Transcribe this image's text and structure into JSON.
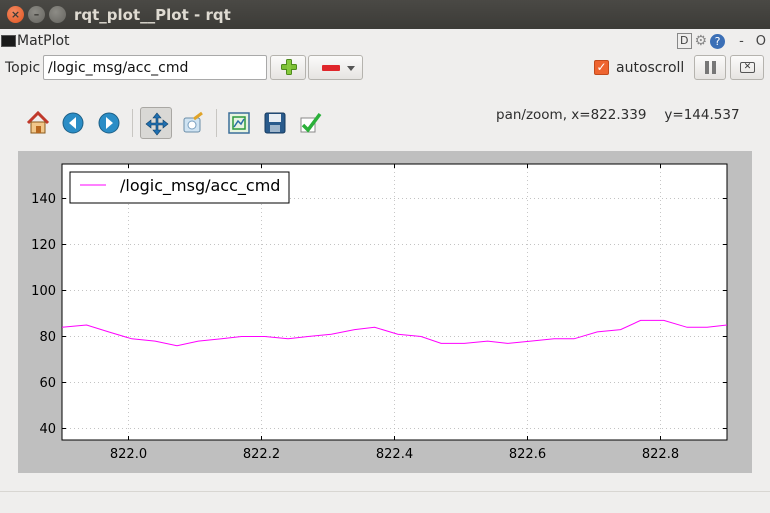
{
  "window": {
    "title": "rqt_plot__Plot - rqt"
  },
  "plugin": {
    "title": "MatPlot",
    "help_letter": "D",
    "help_q": "?",
    "minimize": "-",
    "close": "O"
  },
  "topic": {
    "label": "Topic",
    "value": "/logic_msg/acc_cmd"
  },
  "autoscroll": {
    "label": "autoscroll",
    "checked": true
  },
  "toolbar": {
    "coords_x": "pan/zoom, x=822.339",
    "coords_y": "y=144.537",
    "icons": [
      "home-icon",
      "back-icon",
      "forward-icon",
      "pan-icon",
      "zoom-icon",
      "configure-subplots-icon",
      "save-icon",
      "edit-curves-icon"
    ]
  },
  "colors": {
    "series": "#ff00ff",
    "accent": "#ee6430"
  },
  "chart_data": {
    "type": "line",
    "title": "",
    "xlabel": "",
    "ylabel": "",
    "xlim": [
      821.9,
      822.9
    ],
    "ylim": [
      35,
      155
    ],
    "grid": true,
    "legend_position": "top-left",
    "xticks": [
      822.0,
      822.2,
      822.4,
      822.6,
      822.8
    ],
    "xtick_labels": [
      "822.0",
      "822.2",
      "822.4",
      "822.6",
      "822.8"
    ],
    "yticks": [
      40,
      60,
      80,
      100,
      120,
      140
    ],
    "ytick_labels": [
      "40",
      "60",
      "80",
      "100",
      "120",
      "140"
    ],
    "series": [
      {
        "name": "/logic_msg/acc_cmd",
        "color": "#ff00ff",
        "x": [
          821.9,
          821.937,
          821.97,
          822.005,
          822.04,
          822.073,
          822.105,
          822.14,
          822.17,
          822.205,
          822.24,
          822.27,
          822.305,
          822.34,
          822.37,
          822.405,
          822.44,
          822.47,
          822.505,
          822.54,
          822.57,
          822.605,
          822.64,
          822.67,
          822.705,
          822.74,
          822.77,
          822.805,
          822.84,
          822.87,
          822.9
        ],
        "y": [
          84,
          85,
          82,
          79,
          78,
          76,
          78,
          79,
          80,
          80,
          79,
          80,
          81,
          83,
          84,
          81,
          80,
          77,
          77,
          78,
          77,
          78,
          79,
          79,
          82,
          83,
          87,
          87,
          84,
          84,
          85
        ]
      }
    ]
  }
}
